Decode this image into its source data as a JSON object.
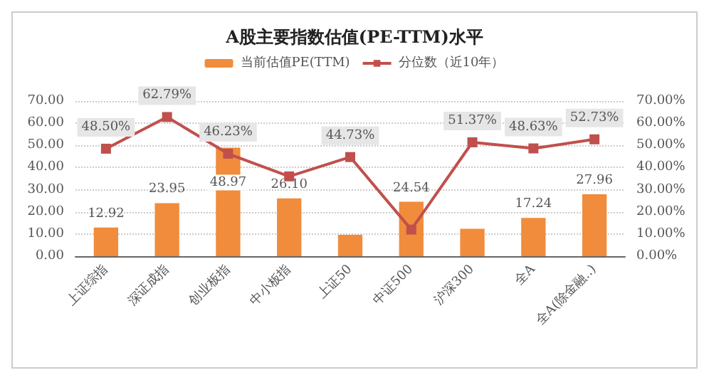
{
  "chart_data": {
    "type": "bar",
    "title": "A股主要指数估值(PE-TTM)水平",
    "categories": [
      "上证综指",
      "深证成指",
      "创业板指",
      "中小板指",
      "上证50",
      "中证500",
      "沪深300",
      "全A",
      "全A(除金融..)"
    ],
    "series": [
      {
        "name": "当前估值PE(TTM)",
        "color": "#f08c3c",
        "values": [
          12.92,
          23.95,
          48.97,
          26.1,
          9.6,
          24.54,
          12.4,
          17.24,
          27.96
        ],
        "value_labels": [
          "12.92",
          "23.95",
          "48.97",
          "26.10",
          null,
          "24.54",
          null,
          "17.24",
          "27.96"
        ]
      },
      {
        "name": "分位数（近10年）",
        "type": "line",
        "axis": "y2",
        "color": "#c0504d",
        "marker": "square",
        "values": [
          48.5,
          62.79,
          46.23,
          36,
          44.73,
          12,
          51.37,
          48.63,
          52.73
        ],
        "value_labels": [
          "48.50%",
          "62.79%",
          "46.23%",
          null,
          "44.73%",
          null,
          "51.37%",
          "48.63%",
          "52.73%"
        ]
      }
    ],
    "ylim": [
      0,
      70
    ],
    "yticks": [
      {
        "value": 0,
        "label": "0.00"
      },
      {
        "value": 10,
        "label": "10.00"
      },
      {
        "value": 20,
        "label": "20.00"
      },
      {
        "value": 30,
        "label": "30.00"
      },
      {
        "value": 40,
        "label": "40.00"
      },
      {
        "value": 50,
        "label": "50.00"
      },
      {
        "value": 60,
        "label": "60.00"
      },
      {
        "value": 70,
        "label": "70.00"
      }
    ],
    "y2lim": [
      0,
      70
    ],
    "y2ticks": [
      {
        "value": 0,
        "label": "0.00%"
      },
      {
        "value": 10,
        "label": "10.00%"
      },
      {
        "value": 20,
        "label": "20.00%"
      },
      {
        "value": 30,
        "label": "30.00%"
      },
      {
        "value": 40,
        "label": "40.00%"
      },
      {
        "value": 50,
        "label": "50.00%"
      },
      {
        "value": 60,
        "label": "60.00%"
      },
      {
        "value": 70,
        "label": "70.00%"
      }
    ],
    "grid": "y",
    "legend": "top"
  }
}
